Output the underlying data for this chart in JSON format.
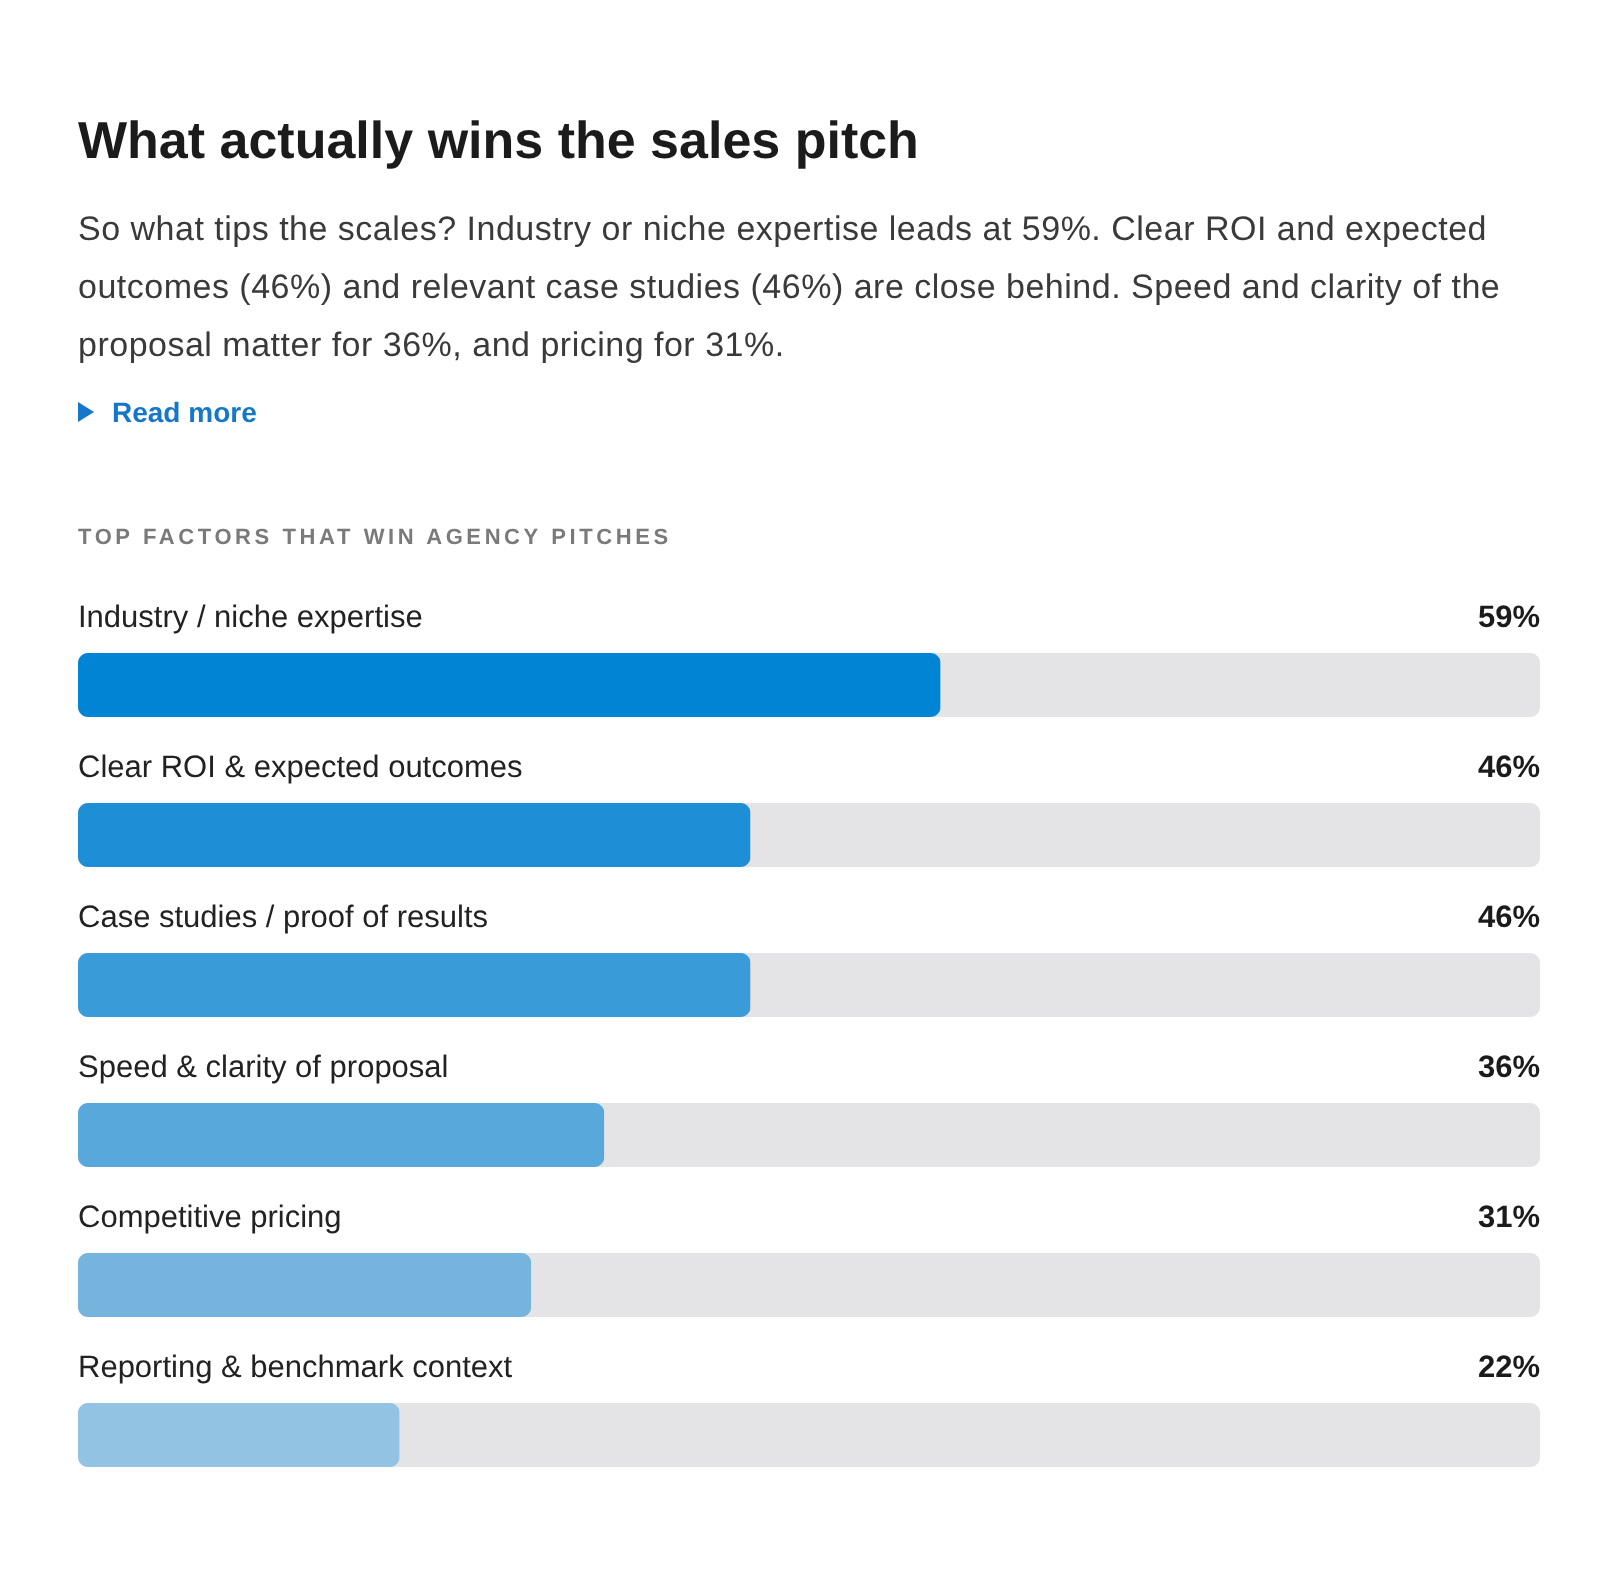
{
  "chart_data": {
    "type": "bar",
    "orientation": "horizontal",
    "title": "What actually wins the sales pitch",
    "subtitle": "So what tips the scales? Industry or niche expertise leads at 59%. Clear ROI and expected outcomes (46%) and relevant case studies (46%) are close behind. Speed and clarity of the proposal matter for 36%, and pricing for 31%.",
    "annotations": [
      "Read more",
      "TOP FACTORS THAT WIN AGENCY PITCHES"
    ],
    "categories": [
      "Industry / niche expertise",
      "Clear ROI & expected outcomes",
      "Case studies / proof of results",
      "Speed & clarity of proposal",
      "Competitive pricing",
      "Reporting & benchmark context"
    ],
    "values": [
      59,
      46,
      46,
      36,
      31,
      22
    ],
    "value_labels": [
      "59%",
      "46%",
      "46%",
      "36%",
      "31%",
      "22%"
    ],
    "colors": [
      "#0284d4",
      "#1e8fd6",
      "#3a9bd9",
      "#58a8db",
      "#76b4de",
      "#93c3e3"
    ],
    "xlim": [
      0,
      100
    ],
    "tick_labels": "y"
  }
}
